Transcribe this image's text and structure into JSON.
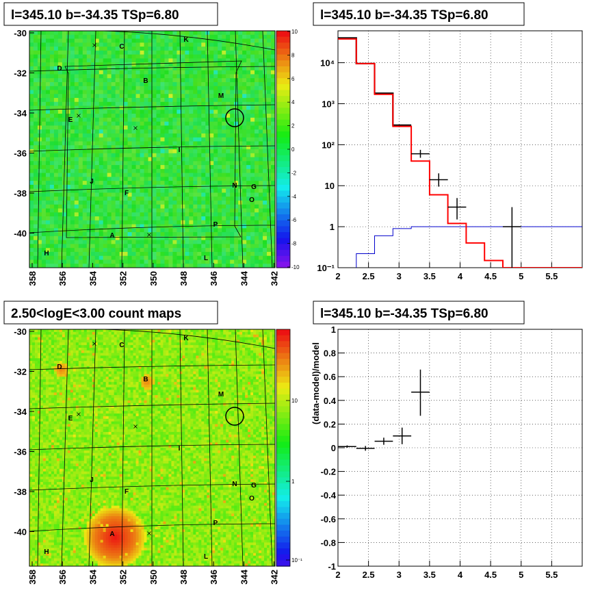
{
  "panels": {
    "tl_title": "l=345.10 b=-34.35 TSp=6.80",
    "tr_title": "l=345.10 b=-34.35 TSp=6.80",
    "bl_title": "2.50<logE<3.00 count maps",
    "br_title": "l=345.10 b=-34.35 TSp=6.80"
  },
  "map": {
    "lon_ticks": [
      "358",
      "356",
      "354",
      "352",
      "350",
      "348",
      "346",
      "344",
      "342"
    ],
    "lat_ticks": [
      "-30",
      "-32",
      "-34",
      "-36",
      "-38",
      "-40"
    ],
    "source_labels": [
      "A",
      "B",
      "C",
      "D",
      "E",
      "F",
      "G",
      "H",
      "I",
      "J",
      "K",
      "L",
      "M",
      "N",
      "O",
      "P"
    ],
    "colorbar_top": [
      "10",
      "8",
      "6",
      "4",
      "2",
      "0",
      "-2",
      "-4",
      "-6",
      "-8",
      "-10"
    ],
    "colorbar_bottom": [
      "10",
      "1",
      "10⁻¹"
    ],
    "colors": {
      "low": "#7a16e6",
      "mid": "#2ee53a",
      "high": "#ff1a1a"
    }
  },
  "chart_data": [
    {
      "type": "line",
      "panel": "top-right spectrum",
      "title": "l=345.10 b=-34.35 TSp=6.80",
      "xlabel": "",
      "ylabel": "",
      "log_y": true,
      "xlim": [
        2,
        6
      ],
      "ylim": [
        0.1,
        60000
      ],
      "x_ticks": [
        "2",
        "2.5",
        "3",
        "3.5",
        "4",
        "4.5",
        "5",
        "5.5"
      ],
      "y_ticks": [
        "10⁻¹",
        "1",
        "10",
        "10²",
        "10³",
        "10⁴"
      ],
      "grid": true,
      "series": [
        {
          "color": "#ff0000",
          "bins": [
            2,
            2.3,
            2.6,
            2.9,
            3.2,
            3.5,
            3.8,
            4.1,
            4.4,
            4.7,
            6
          ],
          "values": [
            38000,
            9500,
            1700,
            280,
            40,
            6,
            1.2,
            0.4,
            0.15,
            0.1
          ]
        },
        {
          "color": "#0000cc",
          "bins": [
            2,
            2.3,
            2.6,
            2.9,
            3.2,
            6
          ],
          "values": [
            0.07,
            0.22,
            0.6,
            0.9,
            1.0
          ]
        },
        {
          "color": "#000000",
          "bins": [
            2,
            2.3,
            2.6,
            2.9,
            3.2,
            3.5,
            3.8,
            4.1,
            4.4,
            4.7,
            6
          ],
          "values": [
            40000,
            9500,
            1800,
            300,
            0,
            0,
            0,
            0,
            0,
            0
          ]
        }
      ],
      "points": [
        {
          "x": 3.35,
          "y": 60,
          "xerr": 0.15,
          "ylo": 48,
          "yhi": 75
        },
        {
          "x": 3.65,
          "y": 14,
          "xerr": 0.15,
          "ylo": 9.5,
          "yhi": 20
        },
        {
          "x": 3.95,
          "y": 3,
          "xerr": 0.15,
          "ylo": 1.5,
          "yhi": 5
        },
        {
          "x": 4.85,
          "y": 1,
          "xerr": 0.15,
          "ylo": 0.1,
          "yhi": 3
        }
      ]
    },
    {
      "type": "scatter",
      "panel": "bottom-right residual",
      "title": "l=345.10 b=-34.35 TSp=6.80",
      "xlabel": "",
      "ylabel": "(data-model)/model",
      "xlim": [
        2,
        6
      ],
      "ylim": [
        -1,
        1
      ],
      "x_ticks": [
        "2",
        "2.5",
        "3",
        "3.5",
        "4",
        "4.5",
        "5",
        "5.5"
      ],
      "y_ticks": [
        "-1",
        "-0.8",
        "-0.6",
        "-0.4",
        "-0.2",
        "0",
        "0.2",
        "0.4",
        "0.6",
        "0.8",
        "1"
      ],
      "grid": true,
      "points": [
        {
          "x": 2.15,
          "y": 0.01,
          "xerr": 0.15,
          "ylo": 0.0,
          "yhi": 0.02
        },
        {
          "x": 2.45,
          "y": -0.005,
          "xerr": 0.15,
          "ylo": -0.025,
          "yhi": 0.015
        },
        {
          "x": 2.75,
          "y": 0.055,
          "xerr": 0.15,
          "ylo": 0.025,
          "yhi": 0.085
        },
        {
          "x": 3.05,
          "y": 0.1,
          "xerr": 0.15,
          "ylo": 0.03,
          "yhi": 0.17
        },
        {
          "x": 3.35,
          "y": 0.47,
          "xerr": 0.15,
          "ylo": 0.27,
          "yhi": 0.66
        }
      ]
    }
  ]
}
